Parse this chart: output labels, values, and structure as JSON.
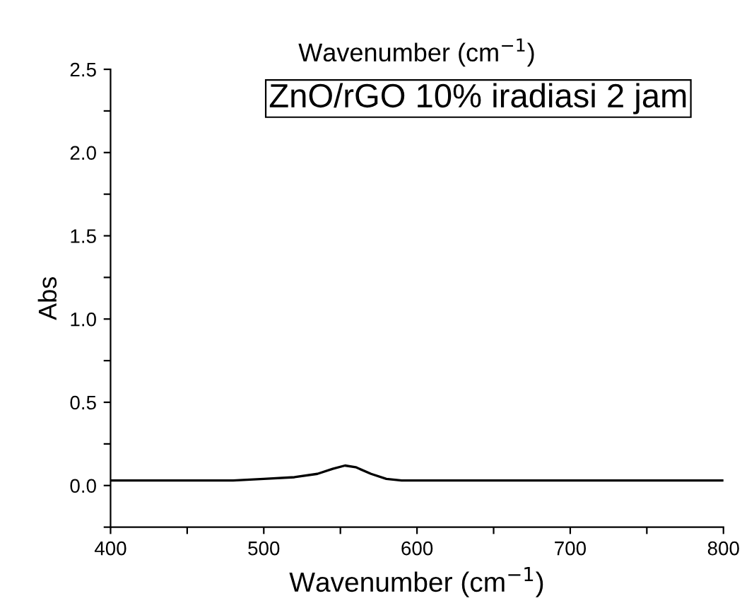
{
  "chart_data": {
    "type": "line",
    "title": "Wavenumber (cm$^{−1}$)",
    "xlabel": "Wavenumber (cm$^{−1}$)",
    "ylabel": "Abs",
    "annotations": [
      "ZnO/rGO 10% iradiasi 2 jam"
    ],
    "x": [
      400,
      450,
      480,
      500,
      520,
      535,
      545,
      553,
      560,
      570,
      580,
      590,
      600,
      650,
      700,
      750,
      800
    ],
    "series": [
      {
        "color": "#000000",
        "values": [
          0.03,
          0.03,
          0.03,
          0.04,
          0.05,
          0.07,
          0.1,
          0.12,
          0.11,
          0.07,
          0.04,
          0.03,
          0.03,
          0.03,
          0.03,
          0.03,
          0.03
        ]
      }
    ],
    "xlim": [
      400,
      800
    ],
    "xticks": [
      400,
      {
        "value": 450,
        "label": null
      },
      500,
      {
        "value": 550,
        "label": null
      },
      600,
      {
        "value": 650,
        "label": null
      },
      700,
      {
        "value": 750,
        "label": null
      },
      800
    ],
    "ylim": [
      -0.25,
      2.5
    ],
    "yticks": [
      {
        "value": -0.25,
        "label": null
      },
      {
        "value": 0,
        "label": "0.0"
      },
      {
        "value": 0.25,
        "label": null
      },
      0.5,
      {
        "value": 0.75,
        "label": null
      },
      {
        "value": 1,
        "label": "1.0"
      },
      {
        "value": 1.25,
        "label": null
      },
      1.5,
      {
        "value": 1.75,
        "label": null
      },
      {
        "value": 2,
        "label": "2.0"
      },
      {
        "value": 2.25,
        "label": null
      },
      2.5
    ],
    "grid": false,
    "legend": false,
    "marker": "none",
    "line_style": "solid"
  }
}
